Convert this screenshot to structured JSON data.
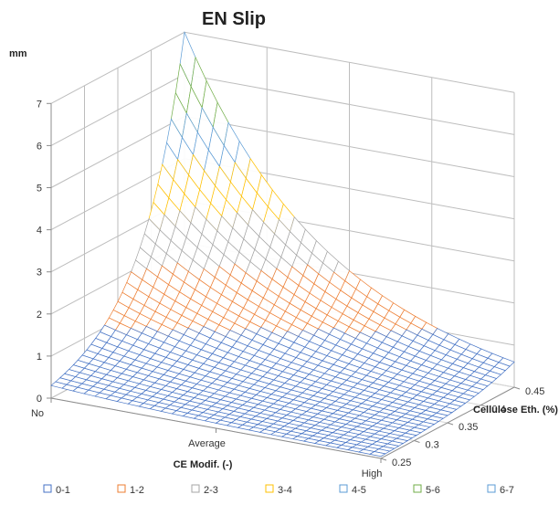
{
  "chart_data": {
    "type": "surface",
    "title": "EN Slip",
    "zlabel": "mm",
    "xlabel": "CE Modif. (-)",
    "ylabel": "Cellulose Eth. (%)",
    "x_categories": [
      "No",
      "Average",
      "High"
    ],
    "y_ticks": [
      "0.25",
      "0.3",
      "0.35",
      "0.4",
      "0.45"
    ],
    "y_range": [
      0.25,
      0.45
    ],
    "z_ticks": [
      "0",
      "1",
      "2",
      "3",
      "4",
      "5",
      "6",
      "7"
    ],
    "z_range": [
      0,
      7
    ],
    "surface_corners": {
      "No_0.25": 0.3,
      "No_0.45": 7.0,
      "High_0.25": 0.05,
      "High_0.45": 0.6
    },
    "bands": [
      {
        "name": "0-1",
        "from": 0,
        "to": 1,
        "color": "#4472C4"
      },
      {
        "name": "1-2",
        "from": 1,
        "to": 2,
        "color": "#ED7D31"
      },
      {
        "name": "2-3",
        "from": 2,
        "to": 3,
        "color": "#A5A5A5"
      },
      {
        "name": "3-4",
        "from": 3,
        "to": 4,
        "color": "#FFC000"
      },
      {
        "name": "4-5",
        "from": 4,
        "to": 5,
        "color": "#5B9BD5"
      },
      {
        "name": "5-6",
        "from": 5,
        "to": 6,
        "color": "#70AD47"
      },
      {
        "name": "6-7",
        "from": 6,
        "to": 7,
        "color": "#5B9BD5"
      }
    ]
  }
}
